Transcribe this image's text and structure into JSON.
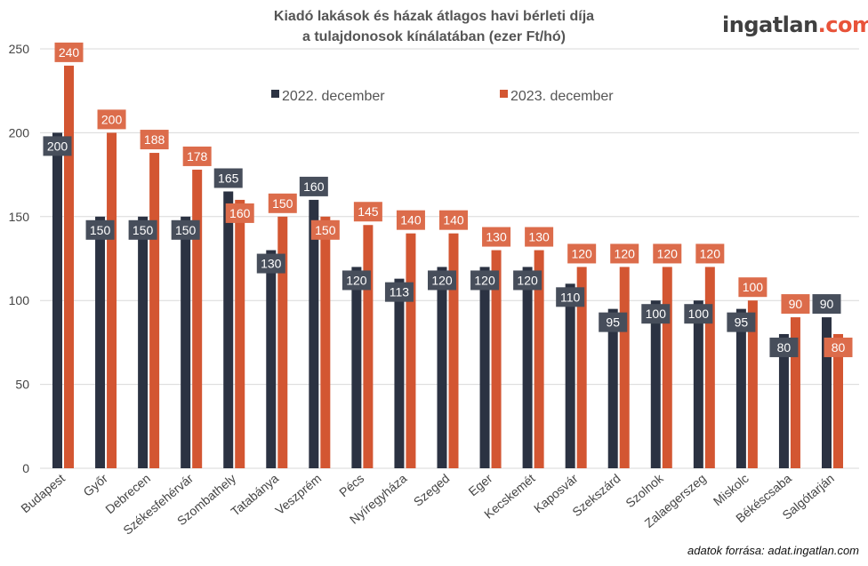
{
  "title_line1": "Kiadó lakások és házak átlagos havi bérleti díja",
  "title_line2": "a tulajdonosok kínálatában (ezer Ft/hó)",
  "logo": {
    "main": "ingatlan",
    "suffix": ".com"
  },
  "source": "adatok forrása: adat.ingatlan.com",
  "colors": {
    "series_2022": "#2b3242",
    "series_2023": "#d35632",
    "label_2022": "#474e5b",
    "label_2023": "#dc6c4b"
  },
  "chart_data": {
    "type": "bar",
    "title": "Kiadó lakások és házak átlagos havi bérleti díja a tulajdonosok kínálatában (ezer Ft/hó)",
    "categories": [
      "Budapest",
      "Győr",
      "Debrecen",
      "Székesfehérvár",
      "Szombathely",
      "Tatabánya",
      "Veszprém",
      "Pécs",
      "Nyíregyháza",
      "Szeged",
      "Eger",
      "Kecskemét",
      "Kaposvár",
      "Szekszárd",
      "Szolnok",
      "Zalaegerszeg",
      "Miskolc",
      "Békéscsaba",
      "Salgótarján"
    ],
    "series": [
      {
        "name": "2022. december",
        "values": [
          200,
          150,
          150,
          150,
          165,
          130,
          160,
          120,
          113,
          120,
          120,
          120,
          110,
          95,
          100,
          100,
          95,
          80,
          90
        ]
      },
      {
        "name": "2023. december",
        "values": [
          240,
          200,
          188,
          178,
          160,
          150,
          150,
          145,
          140,
          140,
          130,
          130,
          120,
          120,
          120,
          120,
          100,
          90,
          80
        ]
      }
    ],
    "ylim": [
      0,
      250
    ],
    "yticks": [
      0,
      50,
      100,
      150,
      200,
      250
    ],
    "grid": true,
    "legend": "top-center"
  }
}
